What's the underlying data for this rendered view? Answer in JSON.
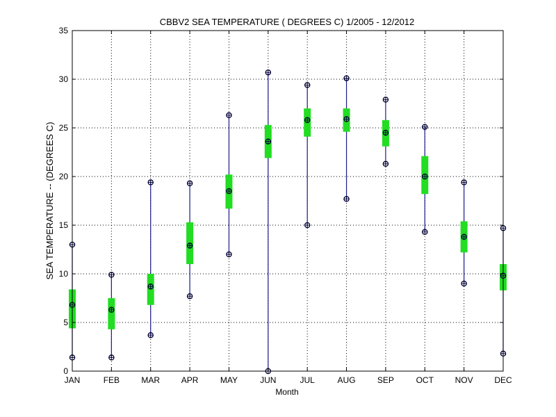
{
  "chart_data": {
    "type": "box",
    "title": "CBBV2  SEA TEMPERATURE ( DEGREES C) 1/2005 - 12/2012",
    "xlabel": "Month",
    "ylabel": "SEA TEMPERATURE -- (DEGREES C)",
    "categories": [
      "JAN",
      "FEB",
      "MAR",
      "APR",
      "MAY",
      "JUN",
      "JUL",
      "AUG",
      "SEP",
      "OCT",
      "NOV",
      "DEC"
    ],
    "min": [
      1.4,
      1.4,
      3.7,
      7.7,
      12.0,
      0.0,
      15.0,
      17.7,
      21.3,
      14.3,
      9.0,
      1.8
    ],
    "q1": [
      4.4,
      4.3,
      6.8,
      11.0,
      16.7,
      21.9,
      24.1,
      24.6,
      23.1,
      18.2,
      12.2,
      8.3
    ],
    "median": [
      6.8,
      6.3,
      8.7,
      12.9,
      18.5,
      23.6,
      25.8,
      25.9,
      24.5,
      20.0,
      13.8,
      9.8
    ],
    "q3": [
      8.4,
      7.5,
      10.0,
      15.3,
      20.2,
      25.3,
      27.0,
      27.0,
      25.8,
      22.1,
      15.4,
      11.0
    ],
    "max": [
      13.0,
      9.9,
      19.4,
      19.3,
      26.3,
      30.7,
      29.4,
      30.1,
      27.9,
      25.1,
      19.4,
      14.7
    ],
    "ylim": [
      0,
      35
    ],
    "yticks": [
      0,
      5,
      10,
      15,
      20,
      25,
      30,
      35
    ],
    "grid": true,
    "colors": {
      "whisker": "#1c1c8c",
      "box": "#22dd22",
      "marker": "#000033",
      "grid": "#000000"
    }
  }
}
